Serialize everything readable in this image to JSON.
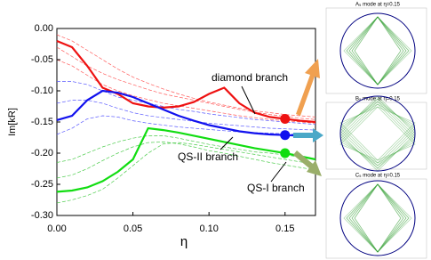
{
  "chart_data": {
    "type": "line",
    "ylabel": "Im[kR]",
    "xlabel": "η",
    "annotations": [
      "diamond branch",
      "QS-II branch",
      "QS-I branch"
    ],
    "insets": [
      {
        "title": "A₅ mode at η=0.15"
      },
      {
        "title": "B₅ mode at η=0.15"
      },
      {
        "title": "C₅ mode at η=0.15"
      }
    ],
    "xlim": [
      0,
      0.17
    ],
    "ylim": [
      -0.3,
      0
    ],
    "xticks": [
      {
        "value": 0,
        "label": "0.00"
      },
      {
        "value": 0.05,
        "label": "0.05"
      },
      {
        "value": 0.1,
        "label": "0.10"
      },
      {
        "value": 0.15,
        "label": "0.15"
      }
    ],
    "yticks": [
      {
        "value": -0.3,
        "label": "-0.30"
      },
      {
        "value": -0.25,
        "label": "-0.25"
      },
      {
        "value": -0.2,
        "label": "-0.20"
      },
      {
        "value": -0.15,
        "label": "-0.15"
      },
      {
        "value": -0.1,
        "label": "-0.10"
      },
      {
        "value": -0.05,
        "label": "-0.05"
      },
      {
        "value": 0,
        "label": "0.00"
      }
    ],
    "x": [
      0,
      0.01,
      0.02,
      0.03,
      0.04,
      0.05,
      0.06,
      0.07,
      0.08,
      0.09,
      0.1,
      0.11,
      0.12,
      0.13,
      0.14,
      0.15,
      0.16,
      0.17
    ],
    "series": [
      {
        "color": "#ff5a5a",
        "line_style": "thin",
        "values": [
          -0.01,
          -0.02,
          -0.035,
          -0.05,
          -0.065,
          -0.078,
          -0.088,
          -0.097,
          -0.105,
          -0.112,
          -0.118,
          -0.123,
          -0.128,
          -0.132,
          -0.135,
          -0.138,
          -0.14,
          -0.142
        ]
      },
      {
        "color": "#ff5a5a",
        "line_style": "thin",
        "values": [
          -0.03,
          -0.045,
          -0.06,
          -0.072,
          -0.082,
          -0.09,
          -0.098,
          -0.105,
          -0.11,
          -0.115,
          -0.12,
          -0.125,
          -0.13,
          -0.134,
          -0.138,
          -0.141,
          -0.144,
          -0.146
        ]
      },
      {
        "color": "#ff5a5a",
        "line_style": "thin",
        "values": [
          -0.05,
          -0.06,
          -0.075,
          -0.09,
          -0.1,
          -0.108,
          -0.114,
          -0.12,
          -0.124,
          -0.128,
          -0.132,
          -0.136,
          -0.14,
          -0.143,
          -0.146,
          -0.148,
          -0.15,
          -0.152
        ]
      },
      {
        "color": "#5a5aff",
        "line_style": "thin",
        "values": [
          -0.085,
          -0.085,
          -0.09,
          -0.1,
          -0.11,
          -0.115,
          -0.12,
          -0.125,
          -0.13,
          -0.133,
          -0.137,
          -0.14,
          -0.143,
          -0.146,
          -0.148,
          -0.15,
          -0.152,
          -0.154
        ]
      },
      {
        "color": "#5a5aff",
        "line_style": "thin",
        "values": [
          -0.12,
          -0.115,
          -0.115,
          -0.12,
          -0.128,
          -0.135,
          -0.14,
          -0.143,
          -0.146,
          -0.149,
          -0.152,
          -0.154,
          -0.156,
          -0.158,
          -0.16,
          -0.161,
          -0.162,
          -0.163
        ]
      },
      {
        "color": "#5a5aff",
        "line_style": "thin",
        "values": [
          -0.17,
          -0.16,
          -0.145,
          -0.14,
          -0.142,
          -0.148,
          -0.152,
          -0.155,
          -0.158,
          -0.16,
          -0.162,
          -0.164,
          -0.166,
          -0.167,
          -0.168,
          -0.169,
          -0.17,
          -0.171
        ]
      },
      {
        "color": "#4ccc4c",
        "line_style": "thin",
        "values": [
          -0.28,
          -0.275,
          -0.268,
          -0.258,
          -0.24,
          -0.22,
          -0.2,
          -0.185,
          -0.183,
          -0.186,
          -0.19,
          -0.194,
          -0.198,
          -0.202,
          -0.206,
          -0.21,
          -0.214,
          -0.218
        ]
      },
      {
        "color": "#4ccc4c",
        "line_style": "thin",
        "values": [
          -0.24,
          -0.235,
          -0.225,
          -0.212,
          -0.2,
          -0.19,
          -0.183,
          -0.182,
          -0.185,
          -0.19,
          -0.196,
          -0.2,
          -0.205,
          -0.21,
          -0.215,
          -0.219,
          -0.223,
          -0.227
        ]
      },
      {
        "color": "#4ccc4c",
        "line_style": "thin",
        "values": [
          -0.215,
          -0.21,
          -0.2,
          -0.19,
          -0.182,
          -0.176,
          -0.172,
          -0.172,
          -0.176,
          -0.181,
          -0.186,
          -0.19,
          -0.194,
          -0.198,
          -0.2,
          -0.203,
          -0.206,
          -0.209
        ]
      },
      {
        "color": "#ee1111",
        "line_style": "thick",
        "values": [
          -0.02,
          -0.03,
          -0.06,
          -0.095,
          -0.105,
          -0.12,
          -0.125,
          -0.127,
          -0.125,
          -0.118,
          -0.105,
          -0.095,
          -0.12,
          -0.135,
          -0.142,
          -0.145,
          -0.148,
          -0.15
        ]
      },
      {
        "color": "#1111ee",
        "line_style": "thick",
        "values": [
          -0.147,
          -0.14,
          -0.115,
          -0.1,
          -0.103,
          -0.11,
          -0.12,
          -0.13,
          -0.14,
          -0.148,
          -0.155,
          -0.16,
          -0.165,
          -0.168,
          -0.17,
          -0.171,
          -0.172,
          -0.173
        ]
      },
      {
        "color": "#11dd11",
        "line_style": "thick",
        "values": [
          -0.262,
          -0.26,
          -0.255,
          -0.245,
          -0.23,
          -0.21,
          -0.16,
          -0.163,
          -0.167,
          -0.172,
          -0.177,
          -0.182,
          -0.187,
          -0.192,
          -0.196,
          -0.2,
          -0.205,
          -0.21
        ]
      }
    ]
  }
}
